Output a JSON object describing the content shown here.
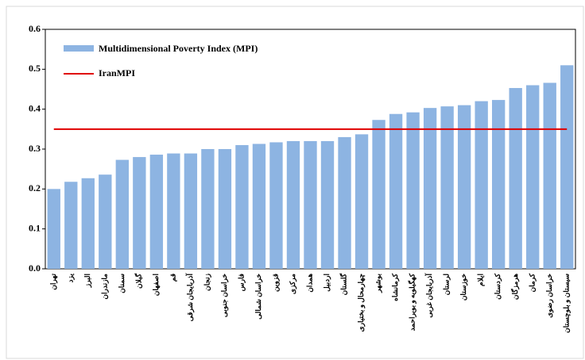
{
  "chart_data": {
    "type": "bar",
    "categories": [
      "تهران",
      "یزد",
      "البرز",
      "مازندران",
      "سمنان",
      "گیلان",
      "اصفهان",
      "قم",
      "آذربایجان شرقی",
      "زنجان",
      "خراسان جنوبی",
      "فارس",
      "خراسان شمالی",
      "قزوین",
      "مرکزی",
      "همدان",
      "اردبیل",
      "گلستان",
      "چهارمحال و بختیاری",
      "بوشهر",
      "کرمانشاه",
      "کهگیلویه و بویراحمد",
      "آذربایجان غربی",
      "لرستان",
      "خوزستان",
      "ایلام",
      "کردستان",
      "هرمزگان",
      "کرمان",
      "خراسان رضوی",
      "سیستان و بلوچستان"
    ],
    "series": [
      {
        "name": "Multidimensional Poverty Index (MPI)",
        "color": "#8db4e2",
        "values": [
          0.2,
          0.218,
          0.227,
          0.236,
          0.273,
          0.28,
          0.286,
          0.289,
          0.289,
          0.3,
          0.3,
          0.31,
          0.313,
          0.317,
          0.32,
          0.32,
          0.32,
          0.33,
          0.337,
          0.373,
          0.388,
          0.392,
          0.403,
          0.407,
          0.41,
          0.42,
          0.423,
          0.453,
          0.46,
          0.466,
          0.51
        ]
      }
    ],
    "reference_line": {
      "name": "IranMPI",
      "value": 0.35,
      "color": "#e00000"
    },
    "ylim": [
      0,
      0.6
    ],
    "yticks": [
      {
        "value": 0,
        "label": "0.0"
      },
      0.1,
      0.2,
      0.3,
      0.4,
      0.5,
      0.6
    ]
  }
}
